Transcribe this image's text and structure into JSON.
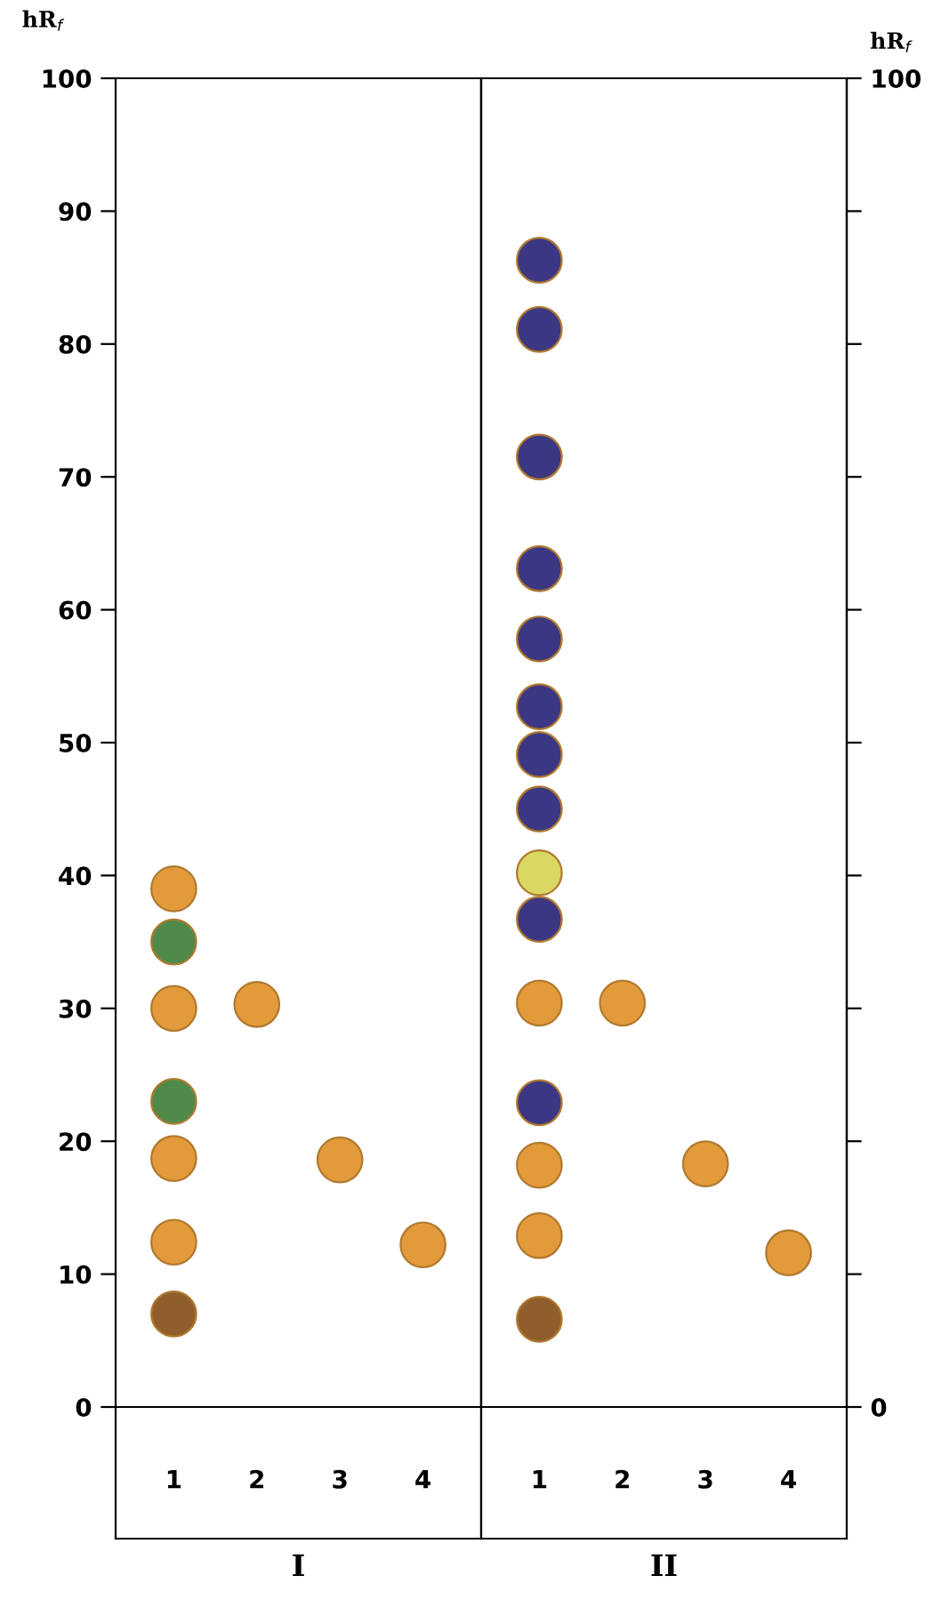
{
  "chart_data": [
    {
      "type": "scatter",
      "xlabel": "I",
      "ylabel": "hR$_{f}$",
      "categories": [
        "1",
        "2",
        "3",
        "4"
      ],
      "ylim": [
        0,
        100
      ],
      "yticks": [
        0,
        10,
        20,
        30,
        40,
        50,
        60,
        70,
        80,
        90,
        100
      ],
      "marker": "circle",
      "grid": false,
      "series": [
        {
          "x": [
            "1",
            "1",
            "1",
            "1",
            "1",
            "1",
            "1",
            "2",
            "3",
            "4"
          ],
          "values": [
            39,
            35,
            30,
            23,
            18.7,
            12.4,
            7,
            30.3,
            18.6,
            12.2
          ],
          "colors": [
            "#e39a3a",
            "#4f8a4a",
            "#e39a3a",
            "#4f8a4a",
            "#e39a3a",
            "#e39a3a",
            "#8f5e2c",
            "#e39a3a",
            "#e39a3a",
            "#e39a3a"
          ]
        }
      ]
    },
    {
      "type": "scatter",
      "xlabel": "II",
      "y2label": "hR$_{f}$",
      "categories": [
        "1",
        "2",
        "3",
        "4"
      ],
      "y2lim": [
        0,
        100
      ],
      "y2ticks": [
        0,
        {
          "value": 10,
          "label": null
        },
        {
          "value": 20,
          "label": null
        },
        {
          "value": 30,
          "label": null
        },
        {
          "value": 40,
          "label": null
        },
        {
          "value": 50,
          "label": null
        },
        {
          "value": 60,
          "label": null
        },
        {
          "value": 70,
          "label": null
        },
        {
          "value": 80,
          "label": null
        },
        {
          "value": 90,
          "label": null
        },
        100
      ],
      "marker": "circle",
      "grid": false,
      "series": [
        {
          "axis": "y2",
          "x": [
            "1",
            "1",
            "1",
            "1",
            "1",
            "1",
            "1",
            "1",
            "1",
            "1",
            "1",
            "1",
            "1",
            "1",
            "1",
            "2",
            "3",
            "4"
          ],
          "values": [
            86.3,
            81.1,
            71.5,
            63.1,
            57.8,
            52.7,
            49.1,
            45,
            40.2,
            36.7,
            30.4,
            22.9,
            18.2,
            12.9,
            6.6,
            30.4,
            18.3,
            11.6
          ],
          "colors": [
            "#3b3783",
            "#3b3783",
            "#3b3783",
            "#3b3783",
            "#3b3783",
            "#3b3783",
            "#3b3783",
            "#3b3783",
            "#d9d862",
            "#3b3783",
            "#e39a3a",
            "#3b3783",
            "#e39a3a",
            "#e39a3a",
            "#8f5e2c",
            "#e39a3a",
            "#e39a3a",
            "#e39a3a"
          ]
        }
      ]
    }
  ]
}
